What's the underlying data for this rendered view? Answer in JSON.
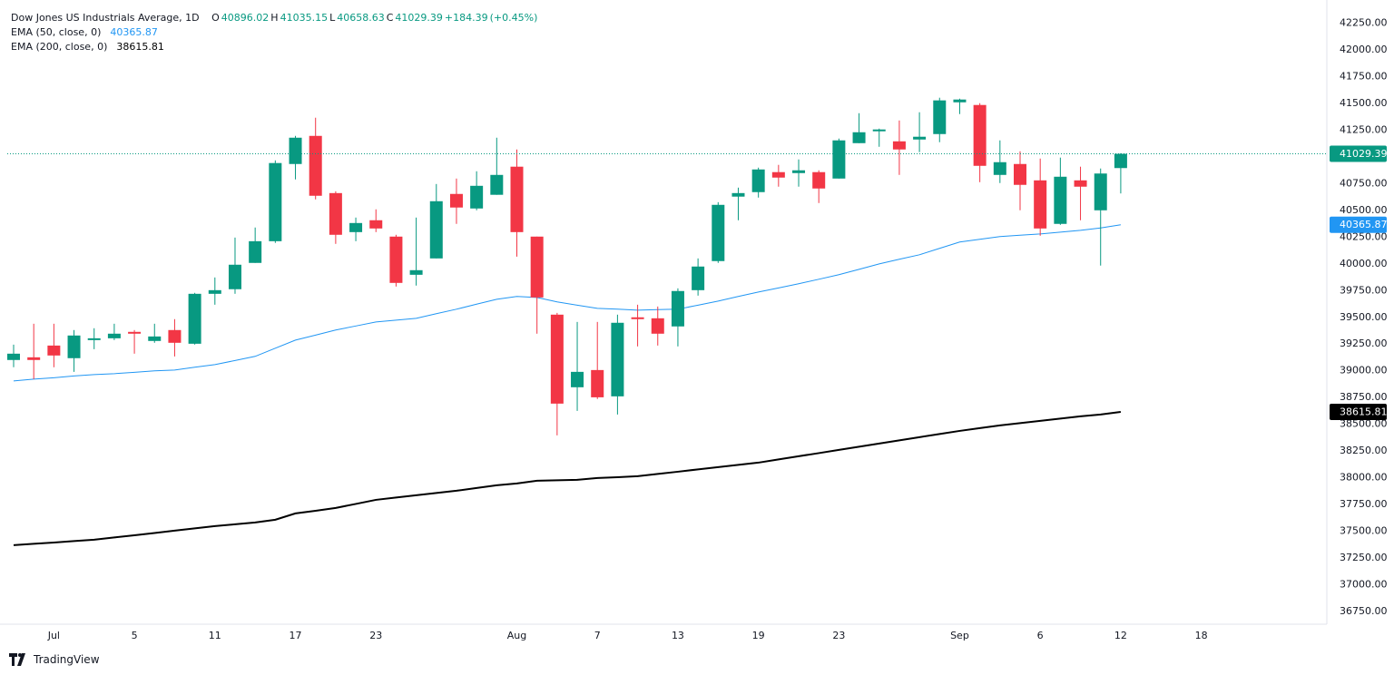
{
  "chart_data": {
    "type": "candlestick",
    "title": "Dow Jones US Industrials Average, 1D",
    "ohlc_labels": [
      "O",
      "H",
      "L",
      "C"
    ],
    "change": {
      "value": 184.39,
      "label": "+184.39"
    },
    "change_pct": {
      "value": 0.45,
      "label": "(+0.45%)"
    },
    "logo": "TradingView",
    "up_color": "#089981",
    "down_color": "#f23645",
    "grid": false,
    "categories": [
      null,
      null,
      "Jul",
      null,
      null,
      null,
      "5",
      null,
      null,
      null,
      "11",
      null,
      null,
      null,
      "17",
      null,
      null,
      null,
      "23",
      null,
      null,
      null,
      null,
      null,
      null,
      "Aug",
      null,
      null,
      null,
      "7",
      null,
      null,
      null,
      "13",
      null,
      null,
      null,
      "19",
      null,
      null,
      null,
      "23",
      null,
      null,
      null,
      null,
      null,
      "Sep",
      null,
      null,
      null,
      "6",
      null,
      null,
      null,
      "12",
      null,
      null,
      null,
      "18"
    ],
    "open": [
      39101,
      39126,
      39236,
      39118,
      39287,
      39304,
      39364,
      39279,
      39381,
      39253,
      39720,
      39763,
      40009,
      40212,
      40934,
      41197,
      40662,
      40297,
      40408,
      40255,
      39898,
      40051,
      40654,
      40518,
      40646,
      40909,
      40255,
      39525,
      38846,
      39007,
      38761,
      39500,
      39491,
      39415,
      39754,
      40026,
      40629,
      40671,
      40858,
      40849,
      40858,
      40798,
      41129,
      41240,
      41146,
      41163,
      41214,
      41511,
      41486,
      40832,
      40934,
      40781,
      40374,
      40781,
      40501,
      40896.02,
      null,
      null,
      null,
      null
    ],
    "high": [
      39245,
      39440,
      39440,
      39381,
      39398,
      39440,
      39381,
      39440,
      39483,
      39729,
      39873,
      40246,
      40340,
      40968,
      41197,
      41367,
      40679,
      40433,
      40510,
      40272,
      40433,
      40747,
      40798,
      40866,
      41180,
      41070,
      40255,
      39542,
      39457,
      39457,
      39525,
      39618,
      39601,
      39771,
      40051,
      40577,
      40713,
      40900,
      40926,
      40977,
      40875,
      41172,
      41409,
      41265,
      41341,
      41418,
      41554,
      41545,
      41503,
      41155,
      41053,
      40985,
      40994,
      40909,
      40892,
      41035.15,
      null,
      null,
      null,
      null
    ],
    "low": [
      39033,
      38922,
      39033,
      38990,
      39202,
      39287,
      39160,
      39262,
      39134,
      39245,
      39618,
      39720,
      40009,
      40196,
      40790,
      40603,
      40187,
      40212,
      40297,
      39788,
      39797,
      40051,
      40374,
      40501,
      40646,
      40068,
      39347,
      38396,
      38625,
      38736,
      38591,
      39228,
      39236,
      39228,
      39703,
      40009,
      40408,
      40620,
      40722,
      40722,
      40569,
      40798,
      41129,
      41095,
      40832,
      41045,
      41138,
      41401,
      40764,
      40756,
      40501,
      40263,
      40365,
      40408,
      39984,
      40658.63,
      null,
      null,
      null,
      null
    ],
    "close": [
      39160,
      39101,
      39143,
      39330,
      39304,
      39347,
      39347,
      39321,
      39262,
      39720,
      39754,
      39992,
      40212,
      40943,
      41180,
      40637,
      40272,
      40382,
      40331,
      39822,
      39941,
      40586,
      40527,
      40730,
      40832,
      40297,
      39686,
      38693,
      38990,
      38752,
      39449,
      39483,
      39347,
      39746,
      39975,
      40552,
      40662,
      40883,
      40807,
      40875,
      40705,
      41155,
      41231,
      41257,
      41070,
      41189,
      41529,
      41537,
      40917,
      40951,
      40739,
      40331,
      40815,
      40722,
      40845,
      41029.39,
      null,
      null,
      null,
      null
    ],
    "series": [
      {
        "name": "EMA (50, close, 0)",
        "color": "#2196f3",
        "values": [
          38905,
          38922,
          38935,
          38952,
          38965,
          38973,
          38986,
          38999,
          39007,
          39033,
          39058,
          39096,
          39135,
          39211,
          39287,
          39334,
          39381,
          39419,
          39457,
          39474,
          39491,
          39534,
          39576,
          39623,
          39669,
          39695,
          39686,
          39644,
          39614,
          39584,
          39576,
          39567,
          39572,
          39576,
          39614,
          39652,
          39695,
          39737,
          39775,
          39814,
          39856,
          39899,
          39949,
          40000,
          40043,
          40085,
          40145,
          40204,
          40230,
          40255,
          40268,
          40280,
          40297,
          40314,
          40336,
          40365.87,
          null,
          null,
          null,
          null
        ]
      },
      {
        "name": "EMA (200, close, 0)",
        "color": "#000000",
        "values": [
          37369,
          37382,
          37394,
          37407,
          37420,
          37441,
          37462,
          37483,
          37505,
          37526,
          37547,
          37564,
          37581,
          37607,
          37666,
          37691,
          37717,
          37755,
          37793,
          37815,
          37836,
          37857,
          37878,
          37904,
          37929,
          37946,
          37972,
          37976,
          37980,
          37997,
          38005,
          38014,
          38035,
          38056,
          38078,
          38099,
          38120,
          38141,
          38171,
          38201,
          38230,
          38260,
          38290,
          38320,
          38349,
          38379,
          38409,
          38438,
          38464,
          38489,
          38511,
          38532,
          38553,
          38574,
          38591,
          38615.81,
          null,
          null,
          null,
          null
        ]
      }
    ],
    "ylim": [
      36630,
      42400
    ],
    "yticks": [
      {
        "value": 36750,
        "label": "36750.00"
      },
      {
        "value": 37000,
        "label": "37000.00"
      },
      {
        "value": 37250,
        "label": "37250.00"
      },
      {
        "value": 37500,
        "label": "37500.00"
      },
      {
        "value": 37750,
        "label": "37750.00"
      },
      {
        "value": 38000,
        "label": "38000.00"
      },
      {
        "value": 38250,
        "label": "38250.00"
      },
      {
        "value": 38500,
        "label": "38500.00"
      },
      {
        "value": 38750,
        "label": "38750.00"
      },
      {
        "value": 39000,
        "label": "39000.00"
      },
      {
        "value": 39250,
        "label": "39250.00"
      },
      {
        "value": 39500,
        "label": "39500.00"
      },
      {
        "value": 39750,
        "label": "39750.00"
      },
      {
        "value": 40000,
        "label": "40000.00"
      },
      {
        "value": 40250,
        "label": "40250.00"
      },
      {
        "value": 40500,
        "label": "40500.00"
      },
      {
        "value": 40750,
        "label": "40750.00"
      },
      {
        "value": 41000,
        "label": "41000.00"
      },
      {
        "value": 41250,
        "label": "41250.00"
      },
      {
        "value": 41500,
        "label": "41500.00"
      },
      {
        "value": 41750,
        "label": "41750.00"
      },
      {
        "value": 42000,
        "label": "42000.00"
      },
      {
        "value": 42250,
        "label": "42250.00"
      }
    ]
  }
}
